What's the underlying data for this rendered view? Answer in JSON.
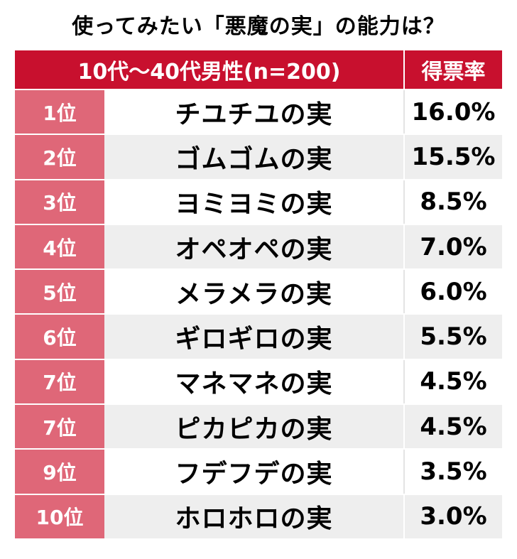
{
  "title": "使ってみたい「悪魔の実」の能力は？",
  "table": {
    "group_label": "10代〜40代男性(n=200)",
    "rate_label": "得票率",
    "rows": [
      {
        "rank": "1位",
        "name": "チユチユの実",
        "rate": "16.0%"
      },
      {
        "rank": "2位",
        "name": "ゴムゴムの実",
        "rate": "15.5%"
      },
      {
        "rank": "3位",
        "name": "ヨミヨミの実",
        "rate": "8.5%"
      },
      {
        "rank": "4位",
        "name": "オペオペの実",
        "rate": "7.0%"
      },
      {
        "rank": "5位",
        "name": "メラメラの実",
        "rate": "6.0%"
      },
      {
        "rank": "6位",
        "name": "ギロギロの実",
        "rate": "5.5%"
      },
      {
        "rank": "7位",
        "name": "マネマネの実",
        "rate": "4.5%"
      },
      {
        "rank": "7位",
        "name": "ピカピカの実",
        "rate": "4.5%"
      },
      {
        "rank": "9位",
        "name": "フデフデの実",
        "rate": "3.5%"
      },
      {
        "rank": "10位",
        "name": "ホロホロの実",
        "rate": "3.0%"
      }
    ]
  }
}
